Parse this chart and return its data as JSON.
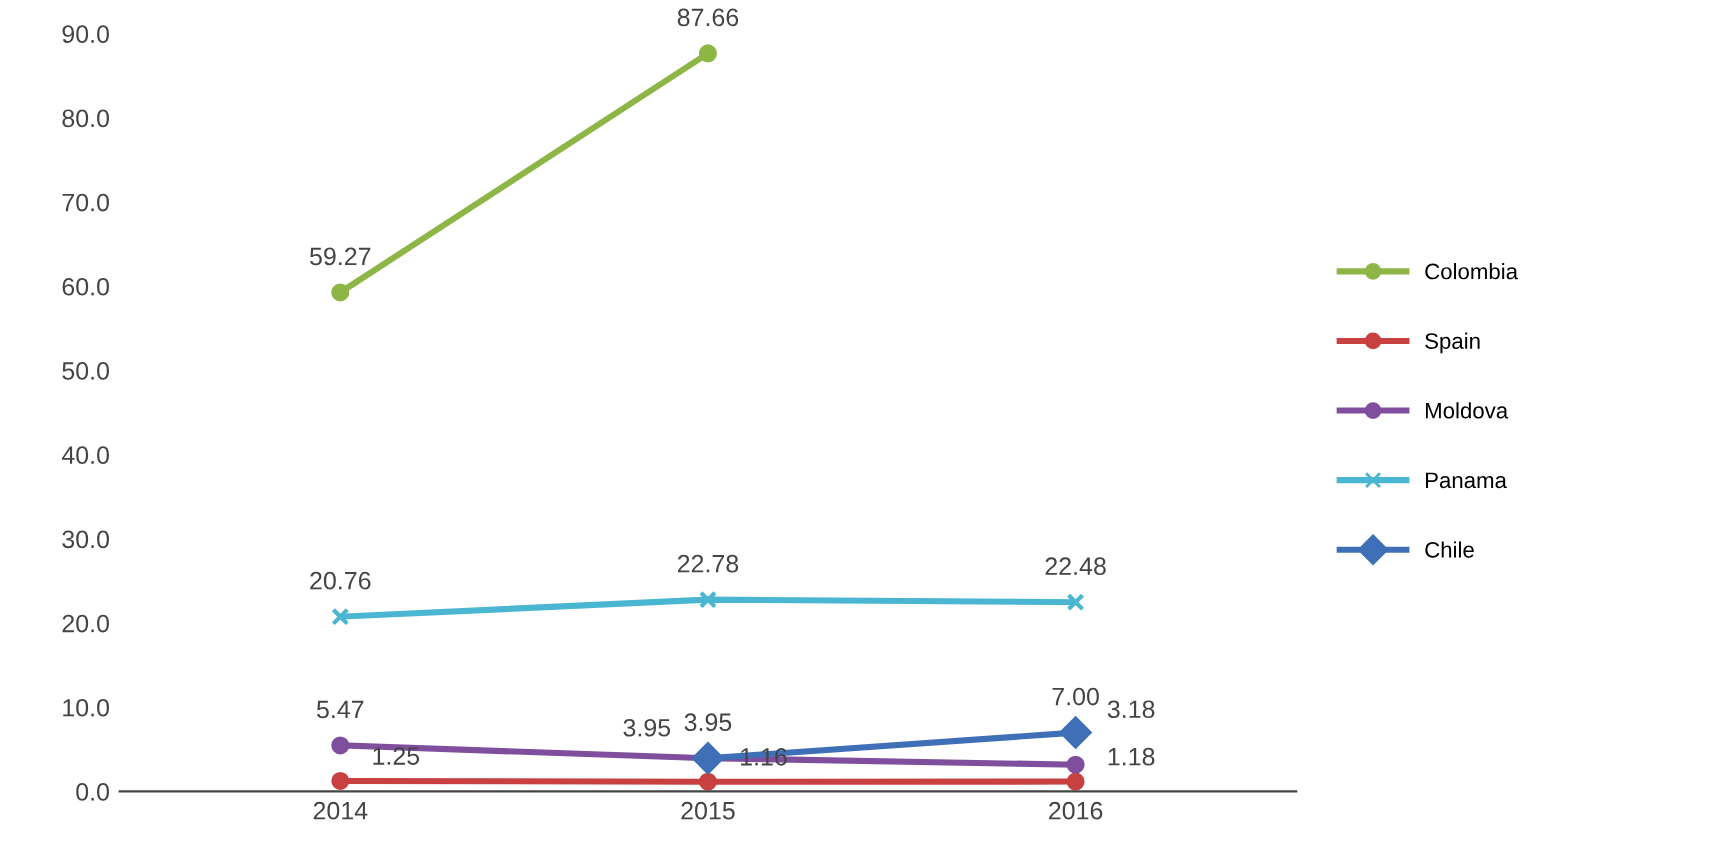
{
  "chart_data": {
    "type": "line",
    "categories": [
      "2014",
      "2015",
      "2016"
    ],
    "series": [
      {
        "name": "Colombia",
        "color": "#8db646",
        "marker": "circle",
        "values": [
          59.27,
          87.66,
          null
        ],
        "value_labels": [
          "59.27",
          "87.66",
          null
        ]
      },
      {
        "name": "Spain",
        "color": "#c8403f",
        "marker": "circle",
        "values": [
          1.25,
          1.16,
          1.18
        ],
        "value_labels": [
          "1.25",
          "1.16",
          "1.18"
        ]
      },
      {
        "name": "Moldova",
        "color": "#7f4f9e",
        "marker": "circle",
        "values": [
          5.47,
          3.95,
          3.18
        ],
        "value_labels": [
          "5.47",
          "3.95",
          "3.18"
        ]
      },
      {
        "name": "Panama",
        "color": "#4bb6d2",
        "marker": "cross",
        "values": [
          20.76,
          22.78,
          22.48
        ],
        "value_labels": [
          "20.76",
          "22.78",
          "22.48"
        ]
      },
      {
        "name": "Chile",
        "color": "#3f6fb6",
        "marker": "diamond",
        "values": [
          null,
          3.95,
          7.0
        ],
        "value_labels": [
          null,
          "3.95",
          "7.00"
        ]
      }
    ],
    "ylim": [
      0,
      90
    ],
    "yticks": [
      {
        "value": 0,
        "label": "0.0"
      },
      {
        "value": 10,
        "label": "10.0"
      },
      {
        "value": 20,
        "label": "20.0"
      },
      {
        "value": 30,
        "label": "30.0"
      },
      {
        "value": 40,
        "label": "40.0"
      },
      {
        "value": 50,
        "label": "50.0"
      },
      {
        "value": 60,
        "label": "60.0"
      },
      {
        "value": 70,
        "label": "70.0"
      },
      {
        "value": 80,
        "label": "80.0"
      },
      {
        "value": 90,
        "label": "90.0"
      }
    ],
    "grid": false,
    "legend": "right",
    "line_style": "solid"
  }
}
